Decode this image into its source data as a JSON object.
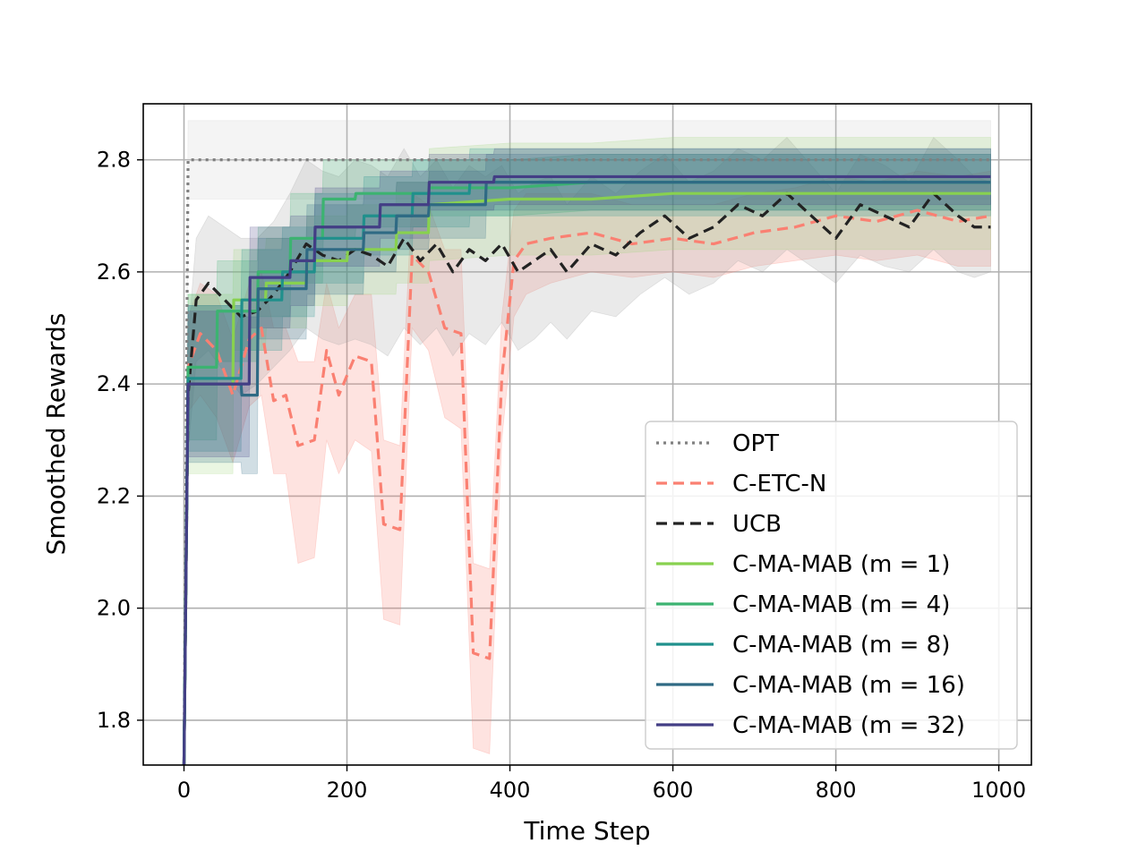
{
  "chart_data": {
    "type": "line",
    "title": "",
    "xlabel": "Time Step",
    "ylabel": "Smoothed Rewards",
    "xlim": [
      -50,
      1040
    ],
    "ylim": [
      1.72,
      2.9
    ],
    "xticks": [
      0,
      200,
      400,
      600,
      800,
      1000
    ],
    "yticks": [
      1.8,
      2.0,
      2.2,
      2.4,
      2.6,
      2.8
    ],
    "xtick_labels": [
      "0",
      "200",
      "400",
      "600",
      "800",
      "1000"
    ],
    "ytick_labels": [
      "1.8",
      "2.0",
      "2.2",
      "2.4",
      "2.6",
      "2.8"
    ],
    "grid": true,
    "legend_position": "lower-right",
    "series": [
      {
        "name": "OPT",
        "color": "#808080",
        "style": "dotted",
        "band": true,
        "band_color": "#c8c8c8",
        "x": [
          0,
          5,
          50,
          100,
          150,
          200,
          250,
          300,
          350,
          400,
          450,
          500,
          550,
          600,
          650,
          700,
          750,
          800,
          850,
          900,
          950,
          990
        ],
        "y": [
          1.72,
          2.8,
          2.8,
          2.8,
          2.8,
          2.8,
          2.8,
          2.8,
          2.8,
          2.8,
          2.8,
          2.8,
          2.8,
          2.8,
          2.8,
          2.8,
          2.8,
          2.8,
          2.8,
          2.8,
          2.8,
          2.8
        ],
        "lower": [
          1.72,
          2.73,
          2.73,
          2.73,
          2.73,
          2.73,
          2.73,
          2.73,
          2.73,
          2.73,
          2.73,
          2.73,
          2.73,
          2.73,
          2.73,
          2.73,
          2.73,
          2.73,
          2.73,
          2.73,
          2.73,
          2.73
        ],
        "upper": [
          1.72,
          2.87,
          2.87,
          2.87,
          2.87,
          2.87,
          2.87,
          2.87,
          2.87,
          2.87,
          2.87,
          2.87,
          2.87,
          2.87,
          2.87,
          2.87,
          2.87,
          2.87,
          2.87,
          2.87,
          2.87,
          2.87
        ]
      },
      {
        "name": "C-ETC-N",
        "color": "#fa8072",
        "style": "dashed",
        "band": true,
        "band_color": "#fa8072",
        "x": [
          0,
          5,
          20,
          40,
          60,
          80,
          95,
          110,
          125,
          140,
          160,
          175,
          190,
          210,
          230,
          245,
          265,
          280,
          300,
          320,
          340,
          355,
          375,
          390,
          405,
          420,
          450,
          500,
          550,
          600,
          650,
          700,
          750,
          800,
          850,
          900,
          950,
          990
        ],
        "y": [
          1.72,
          2.43,
          2.49,
          2.46,
          2.38,
          2.48,
          2.5,
          2.37,
          2.38,
          2.29,
          2.3,
          2.46,
          2.38,
          2.45,
          2.44,
          2.15,
          2.14,
          2.63,
          2.6,
          2.5,
          2.49,
          1.92,
          1.91,
          2.41,
          2.62,
          2.65,
          2.66,
          2.67,
          2.65,
          2.66,
          2.65,
          2.67,
          2.68,
          2.7,
          2.69,
          2.71,
          2.69,
          2.7
        ],
        "lower": [
          1.72,
          2.35,
          2.38,
          2.34,
          2.26,
          2.36,
          2.38,
          2.24,
          2.24,
          2.08,
          2.09,
          2.3,
          2.24,
          2.3,
          2.28,
          1.98,
          1.97,
          2.5,
          2.46,
          2.34,
          2.32,
          1.75,
          1.74,
          2.3,
          2.52,
          2.56,
          2.58,
          2.6,
          2.59,
          2.6,
          2.59,
          2.61,
          2.62,
          2.63,
          2.62,
          2.63,
          2.61,
          2.61
        ],
        "upper": [
          1.72,
          2.52,
          2.58,
          2.56,
          2.48,
          2.58,
          2.6,
          2.5,
          2.5,
          2.44,
          2.44,
          2.58,
          2.5,
          2.56,
          2.56,
          2.3,
          2.29,
          2.74,
          2.72,
          2.64,
          2.64,
          2.08,
          2.07,
          2.52,
          2.71,
          2.74,
          2.74,
          2.74,
          2.72,
          2.72,
          2.72,
          2.74,
          2.75,
          2.77,
          2.76,
          2.78,
          2.77,
          2.78
        ]
      },
      {
        "name": "UCB",
        "color": "#222222",
        "style": "dashed",
        "band": true,
        "band_color": "#a0a0a0",
        "x": [
          0,
          5,
          15,
          30,
          50,
          70,
          90,
          110,
          130,
          150,
          170,
          190,
          210,
          230,
          250,
          270,
          290,
          310,
          330,
          350,
          370,
          390,
          410,
          430,
          450,
          470,
          500,
          530,
          560,
          590,
          620,
          650,
          680,
          710,
          740,
          770,
          800,
          830,
          860,
          890,
          920,
          950,
          970,
          990
        ],
        "y": [
          1.72,
          2.38,
          2.55,
          2.58,
          2.55,
          2.52,
          2.53,
          2.56,
          2.6,
          2.65,
          2.63,
          2.62,
          2.64,
          2.63,
          2.61,
          2.66,
          2.62,
          2.65,
          2.6,
          2.64,
          2.62,
          2.65,
          2.6,
          2.62,
          2.64,
          2.6,
          2.65,
          2.63,
          2.67,
          2.7,
          2.66,
          2.68,
          2.72,
          2.7,
          2.74,
          2.7,
          2.66,
          2.72,
          2.7,
          2.68,
          2.74,
          2.7,
          2.68,
          2.68
        ],
        "lower": [
          1.72,
          2.28,
          2.44,
          2.46,
          2.42,
          2.38,
          2.4,
          2.43,
          2.46,
          2.5,
          2.48,
          2.47,
          2.48,
          2.47,
          2.45,
          2.5,
          2.47,
          2.5,
          2.45,
          2.49,
          2.47,
          2.51,
          2.46,
          2.48,
          2.51,
          2.48,
          2.53,
          2.52,
          2.56,
          2.59,
          2.56,
          2.58,
          2.62,
          2.6,
          2.64,
          2.61,
          2.58,
          2.63,
          2.61,
          2.6,
          2.64,
          2.6,
          2.59,
          2.6
        ],
        "upper": [
          1.72,
          2.48,
          2.66,
          2.7,
          2.68,
          2.66,
          2.66,
          2.69,
          2.74,
          2.8,
          2.78,
          2.77,
          2.8,
          2.79,
          2.77,
          2.82,
          2.77,
          2.8,
          2.75,
          2.79,
          2.77,
          2.79,
          2.74,
          2.76,
          2.77,
          2.72,
          2.77,
          2.74,
          2.78,
          2.81,
          2.76,
          2.78,
          2.82,
          2.8,
          2.84,
          2.79,
          2.74,
          2.81,
          2.79,
          2.76,
          2.84,
          2.8,
          2.77,
          2.76
        ]
      },
      {
        "name": "C-MA-MAB (m = 1)",
        "color": "#88d14f",
        "style": "solid",
        "band": true,
        "band_color": "#9fd67a",
        "x": [
          0,
          5,
          60,
          61,
          100,
          101,
          150,
          151,
          200,
          201,
          260,
          261,
          300,
          301,
          400,
          500,
          600,
          700,
          800,
          990
        ],
        "y": [
          1.72,
          2.4,
          2.4,
          2.55,
          2.55,
          2.58,
          2.58,
          2.62,
          2.62,
          2.64,
          2.64,
          2.67,
          2.67,
          2.72,
          2.73,
          2.73,
          2.74,
          2.74,
          2.74,
          2.74
        ],
        "lower": [
          1.72,
          2.24,
          2.24,
          2.46,
          2.46,
          2.5,
          2.5,
          2.54,
          2.54,
          2.56,
          2.56,
          2.58,
          2.58,
          2.62,
          2.63,
          2.63,
          2.64,
          2.64,
          2.64,
          2.64
        ],
        "upper": [
          1.72,
          2.56,
          2.56,
          2.64,
          2.64,
          2.66,
          2.66,
          2.7,
          2.7,
          2.72,
          2.72,
          2.76,
          2.76,
          2.82,
          2.83,
          2.83,
          2.84,
          2.84,
          2.84,
          2.84
        ]
      },
      {
        "name": "C-MA-MAB (m = 4)",
        "color": "#3cb371",
        "style": "solid",
        "band": true,
        "band_color": "#3cb371",
        "x": [
          0,
          5,
          40,
          41,
          90,
          91,
          130,
          131,
          170,
          171,
          210,
          211,
          260,
          261,
          300,
          301,
          400,
          500,
          600,
          700,
          800,
          990
        ],
        "y": [
          1.72,
          2.43,
          2.43,
          2.53,
          2.53,
          2.6,
          2.6,
          2.66,
          2.66,
          2.73,
          2.73,
          2.74,
          2.74,
          2.74,
          2.74,
          2.75,
          2.75,
          2.76,
          2.76,
          2.76,
          2.76,
          2.76
        ],
        "lower": [
          1.72,
          2.3,
          2.3,
          2.44,
          2.44,
          2.52,
          2.52,
          2.58,
          2.58,
          2.66,
          2.66,
          2.68,
          2.68,
          2.68,
          2.68,
          2.7,
          2.7,
          2.71,
          2.71,
          2.71,
          2.71,
          2.71
        ],
        "upper": [
          1.72,
          2.56,
          2.56,
          2.62,
          2.62,
          2.68,
          2.68,
          2.74,
          2.74,
          2.8,
          2.8,
          2.8,
          2.8,
          2.8,
          2.8,
          2.8,
          2.8,
          2.81,
          2.81,
          2.81,
          2.81,
          2.81
        ]
      },
      {
        "name": "C-MA-MAB (m = 8)",
        "color": "#20908c",
        "style": "solid",
        "band": true,
        "band_color": "#20908c",
        "x": [
          0,
          5,
          70,
          71,
          120,
          121,
          160,
          161,
          220,
          221,
          280,
          281,
          350,
          351,
          400,
          500,
          600,
          700,
          800,
          990
        ],
        "y": [
          1.72,
          2.41,
          2.41,
          2.55,
          2.55,
          2.6,
          2.6,
          2.66,
          2.66,
          2.7,
          2.7,
          2.74,
          2.74,
          2.76,
          2.76,
          2.76,
          2.76,
          2.76,
          2.76,
          2.76
        ],
        "lower": [
          1.72,
          2.28,
          2.28,
          2.46,
          2.46,
          2.52,
          2.52,
          2.58,
          2.58,
          2.63,
          2.63,
          2.68,
          2.68,
          2.7,
          2.7,
          2.7,
          2.7,
          2.7,
          2.7,
          2.7
        ],
        "upper": [
          1.72,
          2.54,
          2.54,
          2.64,
          2.64,
          2.68,
          2.68,
          2.74,
          2.74,
          2.77,
          2.77,
          2.8,
          2.8,
          2.82,
          2.82,
          2.82,
          2.82,
          2.82,
          2.82,
          2.82
        ]
      },
      {
        "name": "C-MA-MAB (m = 16)",
        "color": "#2f6a84",
        "style": "solid",
        "band": true,
        "band_color": "#2f6a84",
        "x": [
          0,
          5,
          70,
          71,
          90,
          91,
          150,
          151,
          220,
          221,
          260,
          261,
          300,
          301,
          370,
          371,
          400,
          500,
          600,
          700,
          800,
          990
        ],
        "y": [
          1.72,
          2.4,
          2.4,
          2.38,
          2.38,
          2.57,
          2.57,
          2.64,
          2.64,
          2.67,
          2.67,
          2.7,
          2.7,
          2.72,
          2.72,
          2.76,
          2.76,
          2.76,
          2.76,
          2.76,
          2.76,
          2.76
        ],
        "lower": [
          1.72,
          2.26,
          2.26,
          2.24,
          2.24,
          2.48,
          2.48,
          2.56,
          2.56,
          2.6,
          2.6,
          2.64,
          2.64,
          2.66,
          2.66,
          2.71,
          2.71,
          2.71,
          2.71,
          2.71,
          2.71,
          2.71
        ],
        "upper": [
          1.72,
          2.54,
          2.54,
          2.52,
          2.52,
          2.66,
          2.66,
          2.72,
          2.72,
          2.74,
          2.74,
          2.76,
          2.76,
          2.78,
          2.78,
          2.81,
          2.81,
          2.81,
          2.81,
          2.81,
          2.81,
          2.81
        ]
      },
      {
        "name": "C-MA-MAB (m = 32)",
        "color": "#433e85",
        "style": "solid",
        "band": true,
        "band_color": "#433e85",
        "x": [
          0,
          5,
          80,
          81,
          130,
          131,
          160,
          161,
          240,
          241,
          300,
          301,
          380,
          381,
          450,
          451,
          500,
          600,
          700,
          800,
          990
        ],
        "y": [
          1.72,
          2.4,
          2.4,
          2.59,
          2.59,
          2.62,
          2.62,
          2.68,
          2.68,
          2.72,
          2.72,
          2.76,
          2.76,
          2.77,
          2.77,
          2.77,
          2.77,
          2.77,
          2.77,
          2.77,
          2.77
        ],
        "lower": [
          1.72,
          2.27,
          2.27,
          2.5,
          2.5,
          2.54,
          2.54,
          2.61,
          2.61,
          2.66,
          2.66,
          2.71,
          2.71,
          2.72,
          2.72,
          2.72,
          2.72,
          2.72,
          2.72,
          2.72,
          2.72
        ],
        "upper": [
          1.72,
          2.53,
          2.53,
          2.68,
          2.68,
          2.7,
          2.7,
          2.75,
          2.75,
          2.78,
          2.78,
          2.81,
          2.81,
          2.82,
          2.82,
          2.82,
          2.82,
          2.82,
          2.82,
          2.82,
          2.82
        ]
      }
    ]
  }
}
